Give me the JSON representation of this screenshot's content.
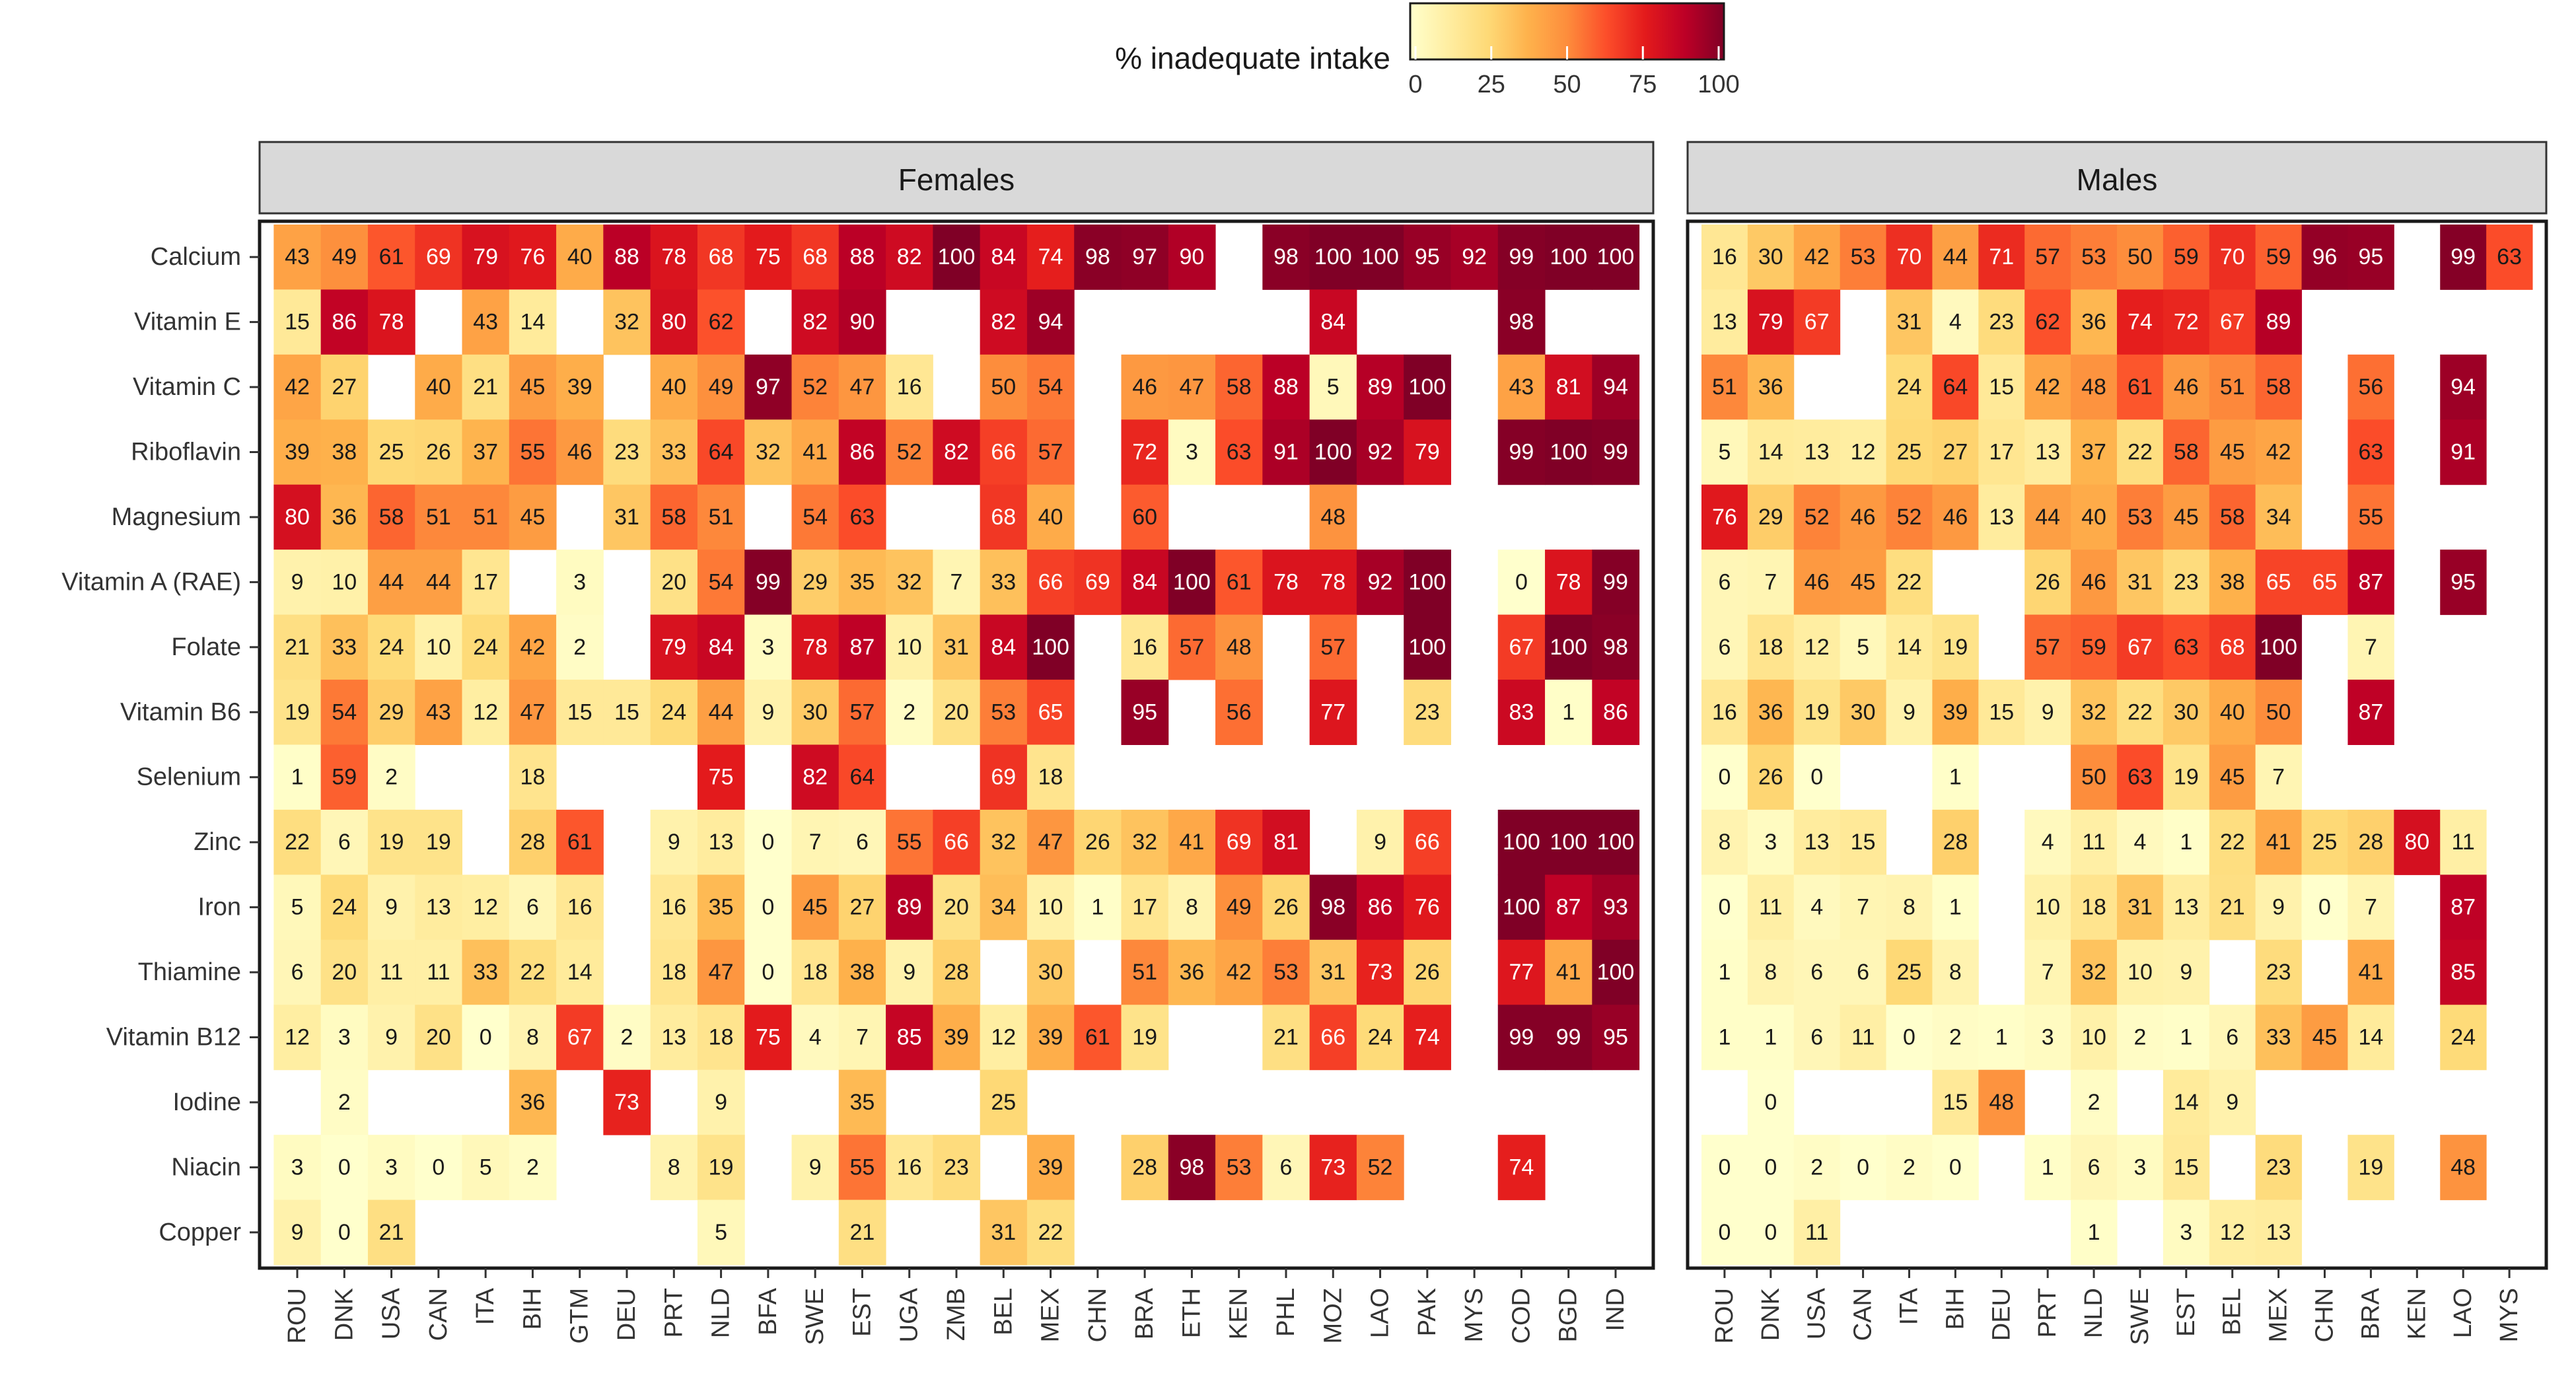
{
  "chart_data": {
    "type": "heatmap",
    "title": "",
    "colorbar": {
      "title": "% inadequate intake",
      "min": 0,
      "max": 100,
      "ticks": [
        0,
        25,
        50,
        75,
        100
      ],
      "colors": [
        "#FFFFCC",
        "#FFEDA0",
        "#FED976",
        "#FEB24C",
        "#FD8D3C",
        "#FC4E2A",
        "#E31A1C",
        "#BD0026",
        "#800026"
      ]
    },
    "nutrients": [
      "Calcium",
      "Vitamin E",
      "Vitamin C",
      "Riboflavin",
      "Magnesium",
      "Vitamin A (RAE)",
      "Folate",
      "Vitamin B6",
      "Selenium",
      "Zinc",
      "Iron",
      "Thiamine",
      "Vitamin B12",
      "Iodine",
      "Niacin",
      "Copper"
    ],
    "panels": [
      {
        "label": "Females",
        "countries": [
          "ROU",
          "DNK",
          "USA",
          "CAN",
          "ITA",
          "BIH",
          "GTM",
          "DEU",
          "PRT",
          "NLD",
          "BFA",
          "SWE",
          "EST",
          "UGA",
          "ZMB",
          "BEL",
          "MEX",
          "CHN",
          "BRA",
          "ETH",
          "KEN",
          "PHL",
          "MOZ",
          "LAO",
          "PAK",
          "MYS",
          "COD",
          "BGD",
          "IND"
        ],
        "values": [
          [
            43,
            49,
            61,
            69,
            79,
            76,
            40,
            88,
            78,
            68,
            75,
            68,
            88,
            82,
            100,
            84,
            74,
            98,
            97,
            90,
            null,
            98,
            100,
            100,
            95,
            92,
            99,
            100,
            100
          ],
          [
            15,
            86,
            78,
            null,
            43,
            14,
            null,
            32,
            80,
            62,
            null,
            82,
            90,
            null,
            null,
            82,
            94,
            null,
            null,
            null,
            null,
            null,
            84,
            null,
            null,
            null,
            98,
            null,
            null
          ],
          [
            42,
            27,
            null,
            40,
            21,
            45,
            39,
            null,
            40,
            49,
            97,
            52,
            47,
            16,
            null,
            50,
            54,
            null,
            46,
            47,
            58,
            88,
            5,
            89,
            100,
            null,
            43,
            81,
            94
          ],
          [
            39,
            38,
            25,
            26,
            37,
            55,
            46,
            23,
            33,
            64,
            32,
            41,
            86,
            52,
            82,
            66,
            57,
            null,
            72,
            3,
            63,
            91,
            100,
            92,
            79,
            null,
            99,
            100,
            99
          ],
          [
            80,
            36,
            58,
            51,
            51,
            45,
            null,
            31,
            58,
            51,
            null,
            54,
            63,
            null,
            null,
            68,
            40,
            null,
            60,
            null,
            null,
            null,
            48,
            null,
            null,
            null,
            null,
            null,
            null
          ],
          [
            9,
            10,
            44,
            44,
            17,
            null,
            3,
            null,
            20,
            54,
            99,
            29,
            35,
            32,
            7,
            33,
            66,
            69,
            84,
            100,
            61,
            78,
            78,
            92,
            100,
            null,
            0,
            78,
            99
          ],
          [
            21,
            33,
            24,
            10,
            24,
            42,
            2,
            null,
            79,
            84,
            3,
            78,
            87,
            10,
            31,
            84,
            100,
            null,
            16,
            57,
            48,
            null,
            57,
            null,
            100,
            null,
            67,
            100,
            98
          ],
          [
            19,
            54,
            29,
            43,
            12,
            47,
            15,
            15,
            24,
            44,
            9,
            30,
            57,
            2,
            20,
            53,
            65,
            null,
            95,
            null,
            56,
            null,
            77,
            null,
            23,
            null,
            83,
            1,
            86
          ],
          [
            1,
            59,
            2,
            null,
            null,
            18,
            null,
            null,
            null,
            75,
            null,
            82,
            64,
            null,
            null,
            69,
            18,
            null,
            null,
            null,
            null,
            null,
            null,
            null,
            null,
            null,
            null,
            null,
            null
          ],
          [
            22,
            6,
            19,
            19,
            null,
            28,
            61,
            null,
            9,
            13,
            0,
            7,
            6,
            55,
            66,
            32,
            47,
            26,
            32,
            41,
            69,
            81,
            null,
            9,
            66,
            null,
            100,
            100,
            100
          ],
          [
            5,
            24,
            9,
            13,
            12,
            6,
            16,
            null,
            16,
            35,
            0,
            45,
            27,
            89,
            20,
            34,
            10,
            1,
            17,
            8,
            49,
            26,
            98,
            86,
            76,
            null,
            100,
            87,
            93
          ],
          [
            6,
            20,
            11,
            11,
            33,
            22,
            14,
            null,
            18,
            47,
            0,
            18,
            38,
            9,
            28,
            null,
            30,
            null,
            51,
            36,
            42,
            53,
            31,
            73,
            26,
            null,
            77,
            41,
            100
          ],
          [
            12,
            3,
            9,
            20,
            0,
            8,
            67,
            2,
            13,
            18,
            75,
            4,
            7,
            85,
            39,
            12,
            39,
            61,
            19,
            null,
            null,
            21,
            66,
            24,
            74,
            null,
            99,
            99,
            95
          ],
          [
            null,
            2,
            null,
            null,
            null,
            36,
            null,
            73,
            null,
            9,
            null,
            null,
            35,
            null,
            null,
            25,
            null,
            null,
            null,
            null,
            null,
            null,
            null,
            null,
            null,
            null,
            null,
            null,
            null
          ],
          [
            3,
            0,
            3,
            0,
            5,
            2,
            null,
            null,
            8,
            19,
            null,
            9,
            55,
            16,
            23,
            null,
            39,
            null,
            28,
            98,
            53,
            6,
            73,
            52,
            null,
            null,
            74,
            null,
            null
          ],
          [
            9,
            0,
            21,
            null,
            null,
            null,
            null,
            null,
            null,
            5,
            null,
            null,
            21,
            null,
            null,
            31,
            22,
            null,
            null,
            null,
            null,
            null,
            null,
            null,
            null,
            null,
            null,
            null,
            null
          ]
        ]
      },
      {
        "label": "Males",
        "countries": [
          "ROU",
          "DNK",
          "USA",
          "CAN",
          "ITA",
          "BIH",
          "DEU",
          "PRT",
          "NLD",
          "SWE",
          "EST",
          "BEL",
          "MEX",
          "CHN",
          "BRA",
          "KEN",
          "LAO",
          "MYS"
        ],
        "values": [
          [
            16,
            30,
            42,
            53,
            70,
            44,
            71,
            57,
            53,
            50,
            59,
            70,
            59,
            96,
            95,
            null,
            99,
            63
          ],
          [
            13,
            79,
            67,
            null,
            31,
            4,
            23,
            62,
            36,
            74,
            72,
            67,
            89,
            null,
            null,
            null,
            null,
            null
          ],
          [
            51,
            36,
            null,
            null,
            24,
            64,
            15,
            42,
            48,
            61,
            46,
            51,
            58,
            null,
            56,
            null,
            94,
            null
          ],
          [
            5,
            14,
            13,
            12,
            25,
            27,
            17,
            13,
            37,
            22,
            58,
            45,
            42,
            null,
            63,
            null,
            91,
            null
          ],
          [
            76,
            29,
            52,
            46,
            52,
            46,
            13,
            44,
            40,
            53,
            45,
            58,
            34,
            null,
            55,
            null,
            null,
            null
          ],
          [
            6,
            7,
            46,
            45,
            22,
            null,
            null,
            26,
            46,
            31,
            23,
            38,
            65,
            65,
            87,
            null,
            95,
            null
          ],
          [
            6,
            18,
            12,
            5,
            14,
            19,
            null,
            57,
            59,
            67,
            63,
            68,
            100,
            null,
            7,
            null,
            null,
            null
          ],
          [
            16,
            36,
            19,
            30,
            9,
            39,
            15,
            9,
            32,
            22,
            30,
            40,
            50,
            null,
            87,
            null,
            null,
            null
          ],
          [
            0,
            26,
            0,
            null,
            null,
            1,
            null,
            null,
            50,
            63,
            19,
            45,
            7,
            null,
            null,
            null,
            null,
            null
          ],
          [
            8,
            3,
            13,
            15,
            null,
            28,
            null,
            4,
            11,
            4,
            1,
            22,
            41,
            25,
            28,
            80,
            11,
            null
          ],
          [
            0,
            11,
            4,
            7,
            8,
            1,
            null,
            10,
            18,
            31,
            13,
            21,
            9,
            0,
            7,
            null,
            87,
            null
          ],
          [
            1,
            8,
            6,
            6,
            25,
            8,
            null,
            7,
            32,
            10,
            9,
            null,
            23,
            null,
            41,
            null,
            85,
            null
          ],
          [
            1,
            1,
            6,
            11,
            0,
            2,
            1,
            3,
            10,
            2,
            1,
            6,
            33,
            45,
            14,
            null,
            24,
            null
          ],
          [
            null,
            0,
            null,
            null,
            null,
            15,
            48,
            null,
            2,
            null,
            14,
            9,
            null,
            null,
            null,
            null,
            null,
            null
          ],
          [
            0,
            0,
            2,
            0,
            2,
            0,
            null,
            1,
            6,
            3,
            15,
            null,
            23,
            null,
            19,
            null,
            48,
            null
          ],
          [
            0,
            0,
            11,
            null,
            null,
            null,
            null,
            null,
            1,
            null,
            3,
            12,
            13,
            null,
            null,
            null,
            null,
            null
          ]
        ]
      }
    ]
  }
}
